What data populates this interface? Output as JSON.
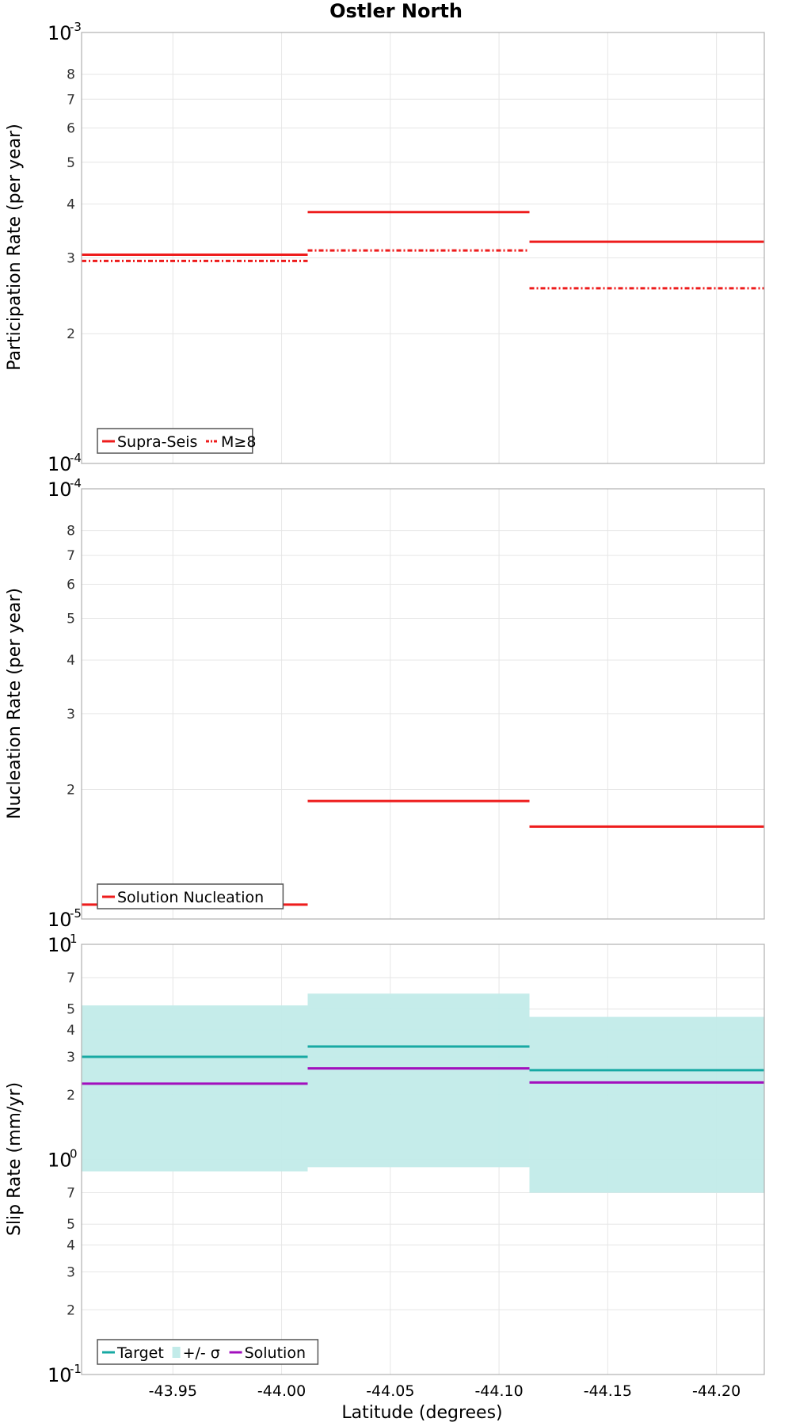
{
  "title": "Ostler North",
  "colors": {
    "red": "#ee1c1c",
    "teal": "#17a9a3",
    "teal_band": "#c2ebe9",
    "purple": "#a20fbd"
  },
  "chart_data": [
    {
      "type": "line",
      "name": "participation",
      "ylabel": "Participation Rate (per year)",
      "yscale": "log",
      "ylim": [
        0.0001,
        0.001
      ],
      "decades": [
        {
          "base": "10",
          "exp": "-4",
          "value": 0.0001
        },
        {
          "base": "10",
          "exp": "-3",
          "value": 0.001
        }
      ],
      "minor_ticks": [
        {
          "label": "2",
          "value": 0.0002
        },
        {
          "label": "3",
          "value": 0.0003
        },
        {
          "label": "4",
          "value": 0.0004
        },
        {
          "label": "5",
          "value": 0.0005
        },
        {
          "label": "6",
          "value": 0.0006
        },
        {
          "label": "7",
          "value": 0.0007
        },
        {
          "label": "8",
          "value": 0.0008
        }
      ],
      "series": [
        {
          "name": "Supra-Seis",
          "color": "#ee1c1c",
          "style": "solid",
          "segments": [
            [
              -43.908,
              -44.012,
              0.000305
            ],
            [
              -44.012,
              -44.114,
              0.000383
            ],
            [
              -44.114,
              -44.222,
              0.000327
            ]
          ]
        },
        {
          "name": "M≥8",
          "color": "#ee1c1c",
          "style": "dashdot",
          "segments": [
            [
              -43.908,
              -44.012,
              0.000295
            ],
            [
              -44.012,
              -44.114,
              0.000312
            ],
            [
              -44.114,
              -44.222,
              0.000255
            ]
          ]
        }
      ],
      "legend": {
        "position": "bottom-left",
        "entries": [
          "Supra-Seis",
          "M≥8"
        ]
      }
    },
    {
      "type": "line",
      "name": "nucleation",
      "ylabel": "Nucleation Rate (per year)",
      "yscale": "log",
      "ylim": [
        1e-05,
        0.0001
      ],
      "decades": [
        {
          "base": "10",
          "exp": "-5",
          "value": 1e-05
        },
        {
          "base": "10",
          "exp": "-4",
          "value": 0.0001
        }
      ],
      "minor_ticks": [
        {
          "label": "2",
          "value": 2e-05
        },
        {
          "label": "3",
          "value": 3e-05
        },
        {
          "label": "4",
          "value": 4e-05
        },
        {
          "label": "5",
          "value": 5e-05
        },
        {
          "label": "6",
          "value": 6e-05
        },
        {
          "label": "7",
          "value": 7e-05
        },
        {
          "label": "8",
          "value": 8e-05
        }
      ],
      "series": [
        {
          "name": "Solution Nucleation",
          "color": "#ee1c1c",
          "style": "solid",
          "segments": [
            [
              -43.908,
              -44.012,
              1.08e-05
            ],
            [
              -44.012,
              -44.114,
              1.88e-05
            ],
            [
              -44.114,
              -44.222,
              1.64e-05
            ]
          ]
        }
      ],
      "legend": {
        "position": "bottom-left",
        "entries": [
          "Solution Nucleation"
        ]
      }
    },
    {
      "type": "line",
      "name": "slip",
      "ylabel": "Slip Rate (mm/yr)",
      "xlabel": "Latitude (degrees)",
      "yscale": "log",
      "ylim": [
        0.1,
        10
      ],
      "xlim": [
        -43.908,
        -44.222
      ],
      "xticks": [
        {
          "label": "-43.95",
          "value": -43.95
        },
        {
          "label": "-44.00",
          "value": -44.0
        },
        {
          "label": "-44.05",
          "value": -44.05
        },
        {
          "label": "-44.10",
          "value": -44.1
        },
        {
          "label": "-44.15",
          "value": -44.15
        },
        {
          "label": "-44.20",
          "value": -44.2
        }
      ],
      "decades": [
        {
          "base": "10",
          "exp": "-1",
          "value": 0.1
        },
        {
          "base": "10",
          "exp": "0",
          "value": 1
        },
        {
          "base": "10",
          "exp": "1",
          "value": 10
        }
      ],
      "minor_ticks": [
        {
          "label": "2",
          "value": 0.2
        },
        {
          "label": "3",
          "value": 0.3
        },
        {
          "label": "4",
          "value": 0.4
        },
        {
          "label": "5",
          "value": 0.5
        },
        {
          "label": "7",
          "value": 0.7
        },
        {
          "label": "2",
          "value": 2
        },
        {
          "label": "3",
          "value": 3
        },
        {
          "label": "4",
          "value": 4
        },
        {
          "label": "5",
          "value": 5
        },
        {
          "label": "7",
          "value": 7
        }
      ],
      "bands": [
        {
          "name": "+/- σ",
          "color": "#c2ebe9",
          "segments": [
            [
              -43.908,
              -44.012,
              0.88,
              5.2
            ],
            [
              -44.012,
              -44.114,
              0.92,
              5.9
            ],
            [
              -44.114,
              -44.222,
              0.7,
              4.6
            ]
          ]
        }
      ],
      "series": [
        {
          "name": "Target",
          "color": "#17a9a3",
          "style": "solid",
          "segments": [
            [
              -43.908,
              -44.012,
              3.0
            ],
            [
              -44.012,
              -44.114,
              3.35
            ],
            [
              -44.114,
              -44.222,
              2.6
            ]
          ]
        },
        {
          "name": "Solution",
          "color": "#a20fbd",
          "style": "solid",
          "segments": [
            [
              -43.908,
              -44.012,
              2.25
            ],
            [
              -44.012,
              -44.114,
              2.65
            ],
            [
              -44.114,
              -44.222,
              2.28
            ]
          ]
        }
      ],
      "legend": {
        "position": "bottom-left",
        "entries": [
          "Target",
          "+/- σ",
          "Solution"
        ]
      }
    }
  ]
}
